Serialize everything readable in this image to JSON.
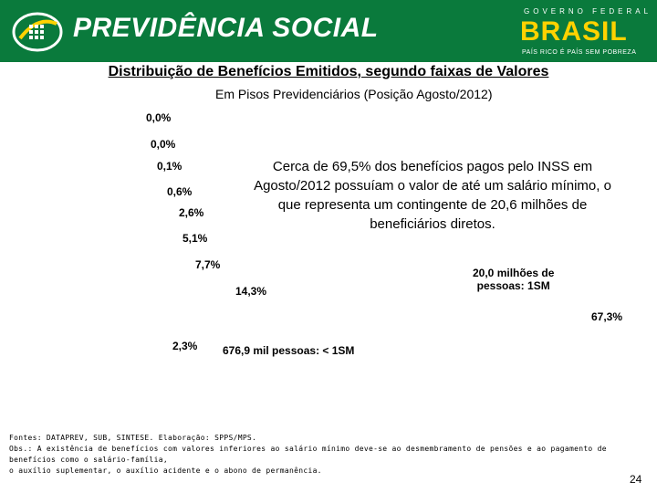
{
  "header": {
    "title": "PREVIDÊNCIA SOCIAL",
    "gov_top": "GOVERNO FEDERAL",
    "gov_main": "BRASIL",
    "gov_bottom": "PAÍS RICO É PAÍS SEM POBREZA",
    "colors": {
      "band": "#0a7a3c",
      "brand_yellow": "#ffd200"
    },
    "logo_icon": "previdencia-logo-icon"
  },
  "title": "Distribuição de Benefícios Emitidos, segundo faixas de Valores",
  "subtitle": "Em Pisos Previdenciários (Posição Agosto/2012)",
  "percent_labels": [
    "0,0%",
    "0,0%",
    "0,1%",
    "0,6%",
    "2,6%",
    "5,1%",
    "7,7%",
    "14,3%",
    "67,3%",
    "2,3%"
  ],
  "callout": "Cerca de 69,5% dos benefícios pagos pelo INSS em Agosto/2012 possuíam o valor de até um salário mínimo, o que representa um contingente de 20,6 milhões de beneficiários diretos.",
  "note_1sm": [
    "20,0 milhões de",
    "pessoas: 1SM"
  ],
  "note_lt1sm": "676,9 mil pessoas: < 1SM",
  "footer": {
    "line1": "Fontes: DATAPREV, SUB, SINTESE. Elaboração: SPPS/MPS.",
    "line2": "Obs.: A existência de benefícios com valores inferiores ao salário mínimo deve-se ao desmembramento de pensões e ao pagamento de benefícios como o salário-família,",
    "line3": "o auxílio suplementar, o auxílio acidente e o abono de permanência."
  },
  "page_number": "24"
}
